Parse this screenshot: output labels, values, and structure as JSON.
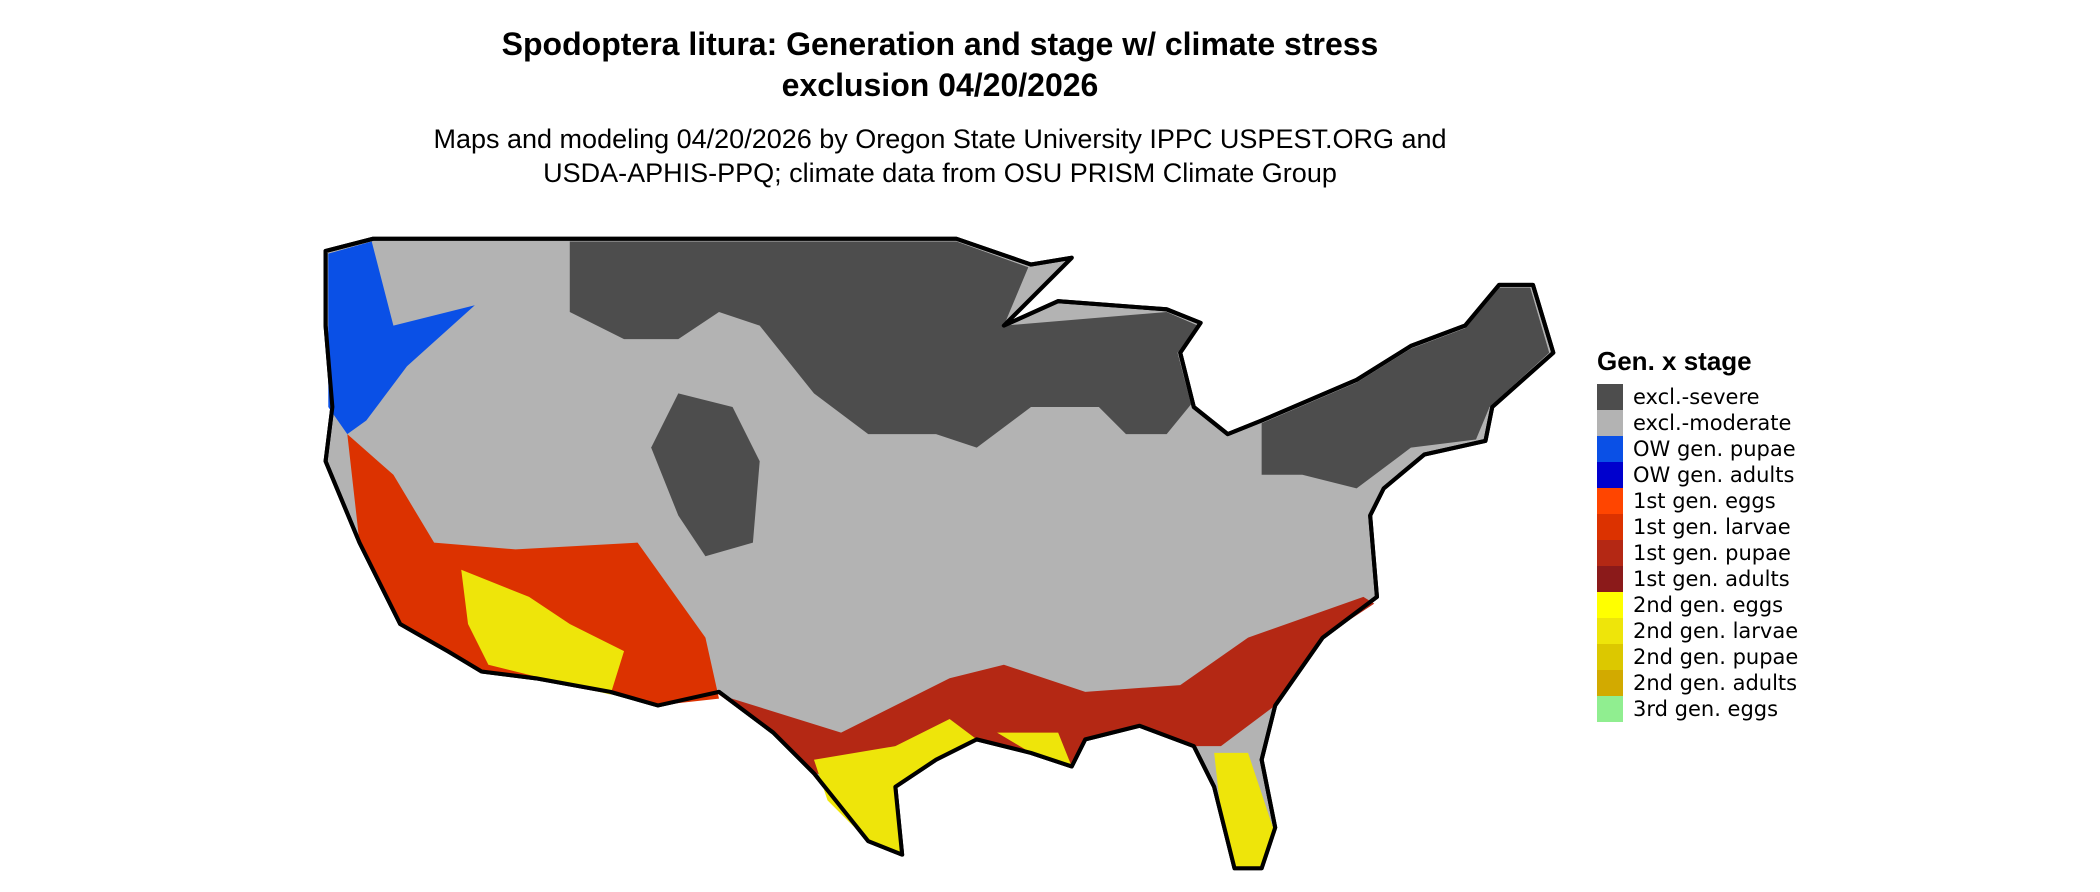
{
  "title": "Spodoptera litura: Generation and stage w/ climate stress exclusion 04/20/2026",
  "subtitle": "Maps and modeling 04/20/2026 by Oregon State University IPPC USPEST.ORG and USDA-APHIS-PPQ; climate data from OSU PRISM Climate Group",
  "legend": {
    "title": "Gen. x stage",
    "items": [
      {
        "label": "excl.-severe",
        "color": "#4d4d4d"
      },
      {
        "label": "excl.-moderate",
        "color": "#b3b3b3"
      },
      {
        "label": "OW gen. pupae",
        "color": "#0a50e6"
      },
      {
        "label": "OW gen. adults",
        "color": "#0000cd"
      },
      {
        "label": "1st gen. eggs",
        "color": "#ff4500"
      },
      {
        "label": "1st gen. larvae",
        "color": "#dc3200"
      },
      {
        "label": "1st gen. pupae",
        "color": "#b42814"
      },
      {
        "label": "1st gen. adults",
        "color": "#8b1a1a"
      },
      {
        "label": "2nd gen. eggs",
        "color": "#ffff00"
      },
      {
        "label": "2nd gen. larvae",
        "color": "#eee50a"
      },
      {
        "label": "2nd gen. pupae",
        "color": "#dcc800"
      },
      {
        "label": "2nd gen. adults",
        "color": "#d2aa00"
      },
      {
        "label": "3rd gen. eggs",
        "color": "#90ee90"
      }
    ]
  }
}
